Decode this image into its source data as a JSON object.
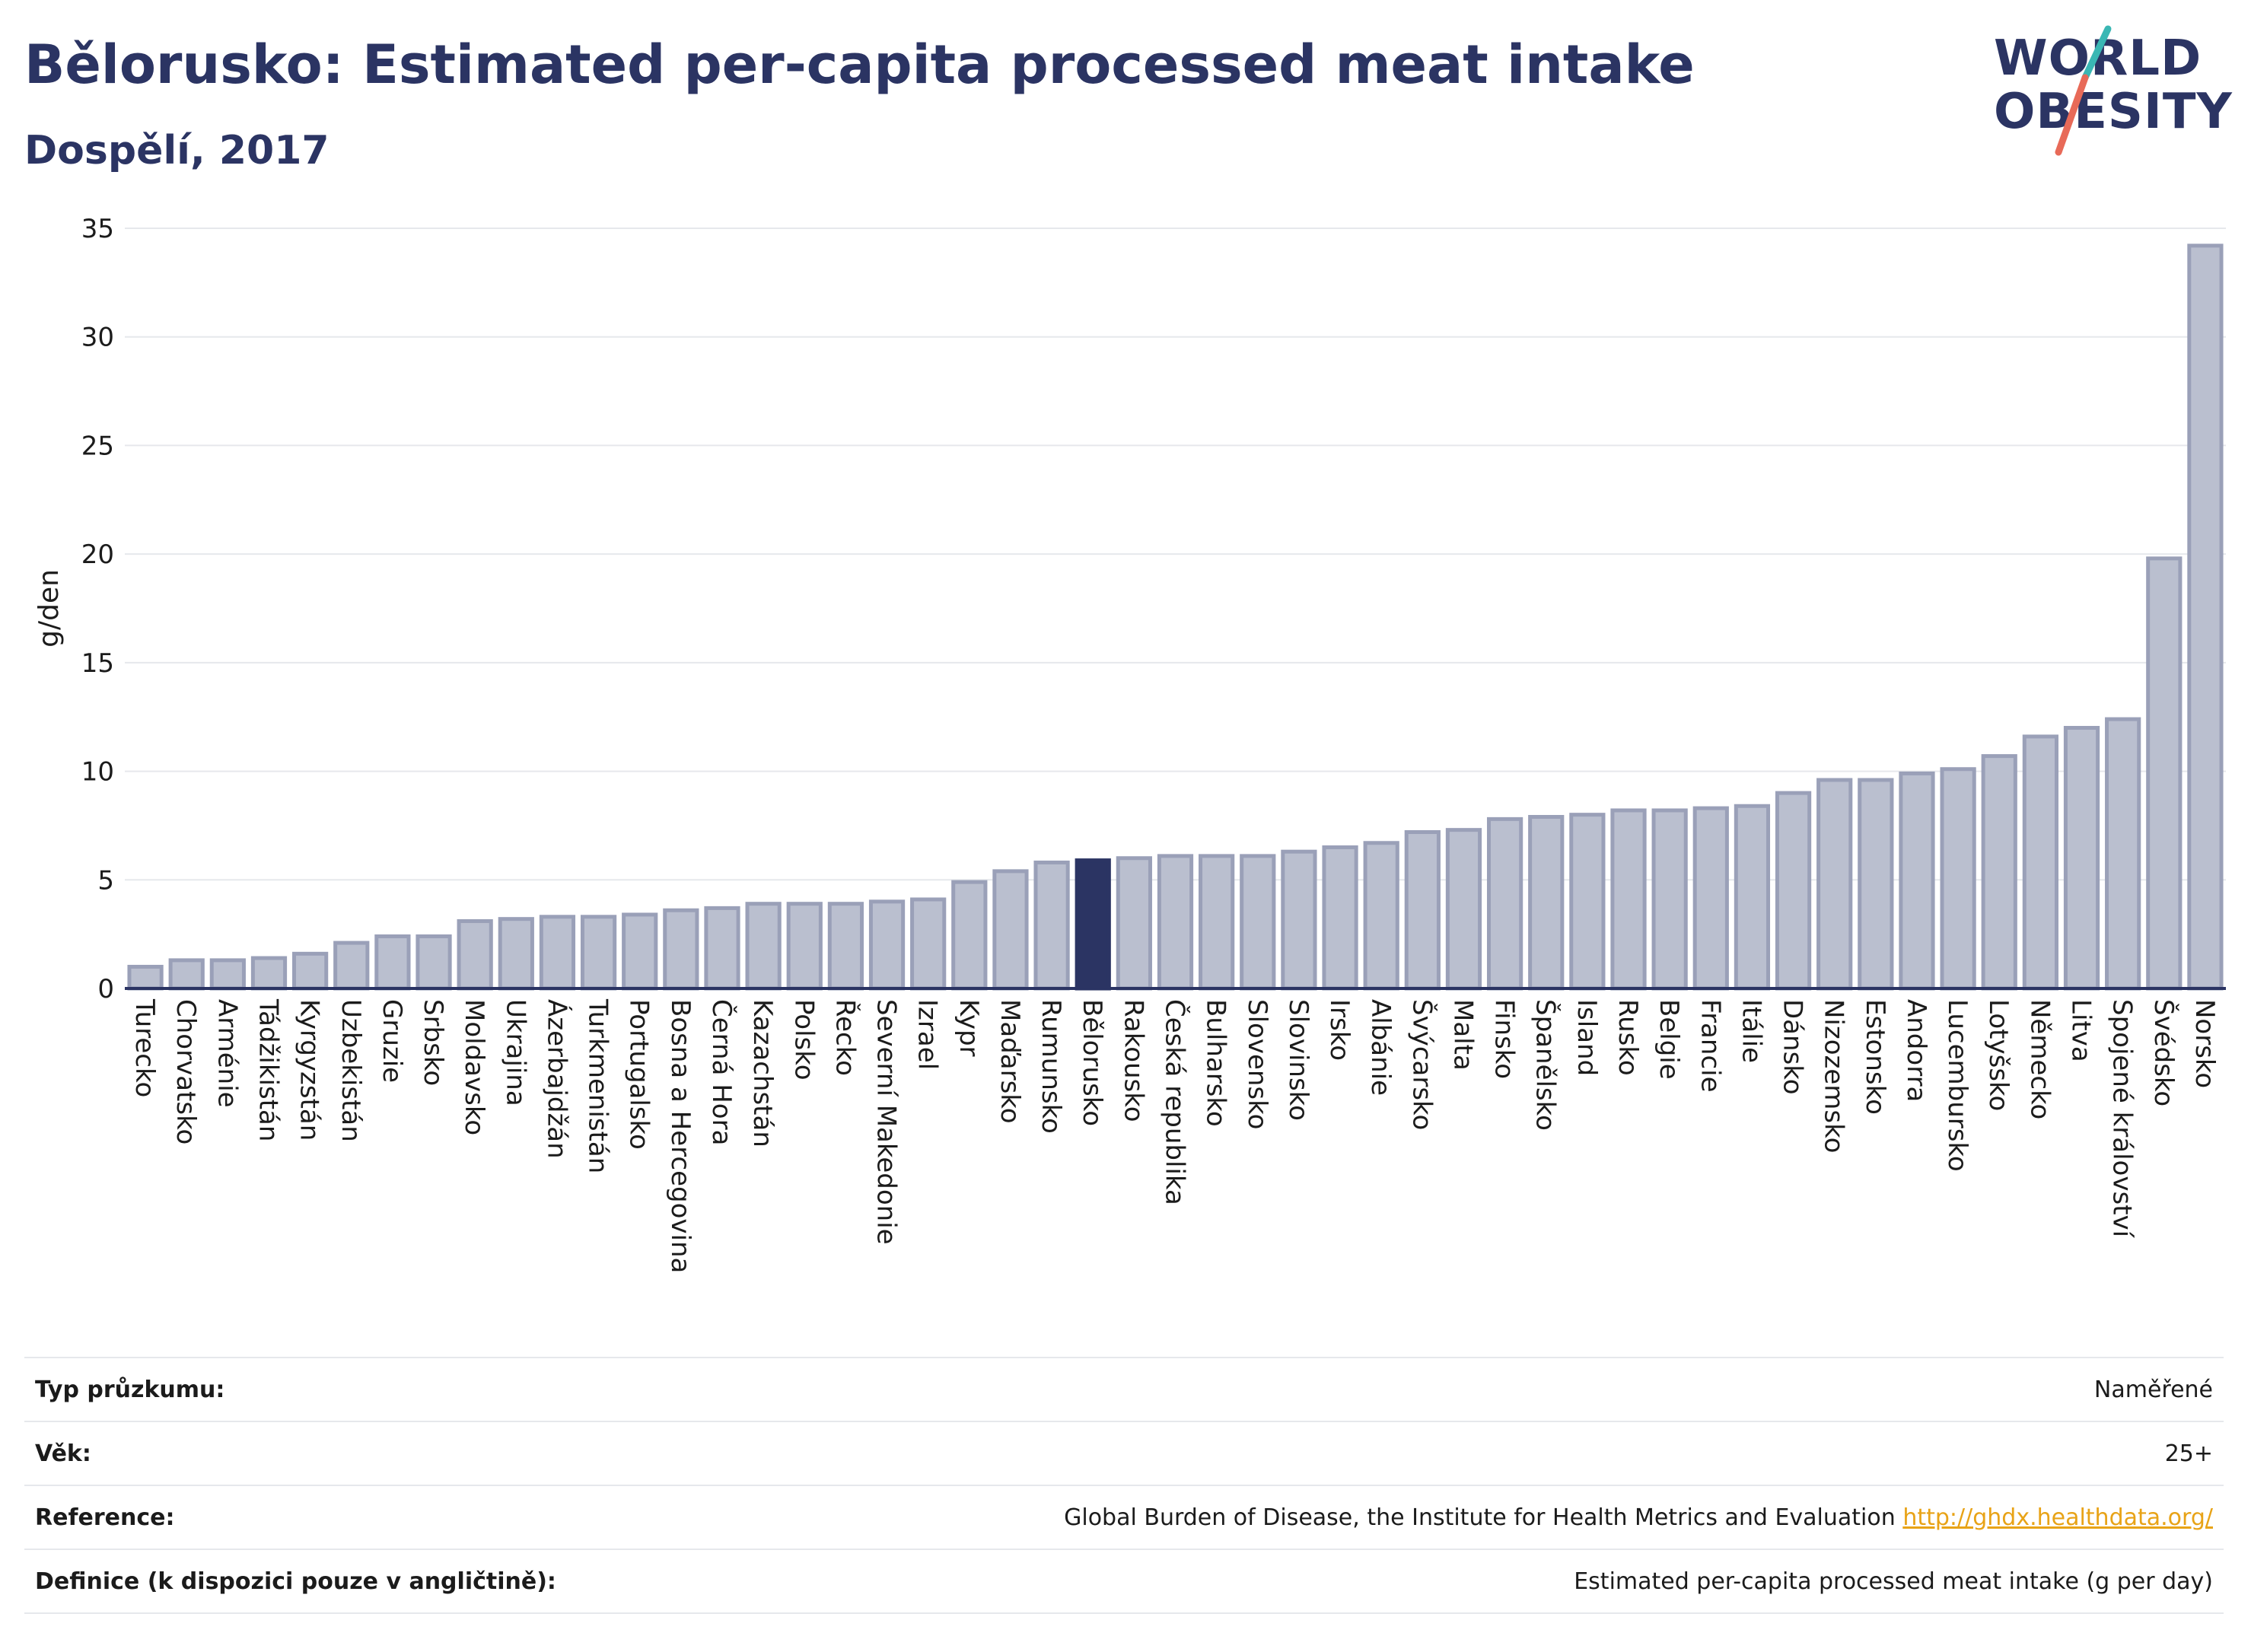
{
  "header": {
    "title": "Bělorusko: Estimated per-capita processed meat intake",
    "subtitle": "Dospělí, 2017"
  },
  "logo": {
    "line1": "WORLD",
    "line2": "OBESITY",
    "accent_teal": "#3ab7b4",
    "accent_coral": "#e86a58"
  },
  "colors": {
    "bar": "#babfcf",
    "bar_border": "#9aa0b8",
    "highlight": "#2b3463",
    "grid": "#e6e8ec"
  },
  "chart_data": {
    "type": "bar",
    "ylabel": "g/den",
    "ylim": [
      0,
      35
    ],
    "yticks": [
      0,
      5,
      10,
      15,
      20,
      25,
      30,
      35
    ],
    "highlight": "Bělorusko",
    "categories": [
      "Turecko",
      "Chorvatsko",
      "Arménie",
      "Tádžikistán",
      "Kyrgyzstán",
      "Uzbekistán",
      "Gruzie",
      "Srbsko",
      "Moldavsko",
      "Ukrajina",
      "Ázerbajdžán",
      "Turkmenistán",
      "Portugalsko",
      "Bosna a Hercegovina",
      "Černá Hora",
      "Kazachstán",
      "Polsko",
      "Řecko",
      "Severní Makedonie",
      "Izrael",
      "Kypr",
      "Maďarsko",
      "Rumunsko",
      "Bělorusko",
      "Rakousko",
      "Česká republika",
      "Bulharsko",
      "Slovensko",
      "Slovinsko",
      "Irsko",
      "Albánie",
      "Švýcarsko",
      "Malta",
      "Finsko",
      "Španělsko",
      "Island",
      "Rusko",
      "Belgie",
      "Francie",
      "Itálie",
      "Dánsko",
      "Nizozemsko",
      "Estonsko",
      "Andorra",
      "Lucembursko",
      "Lotyšsko",
      "Německo",
      "Litva",
      "Spojené království",
      "Švédsko",
      "Norsko"
    ],
    "values": [
      1.0,
      1.3,
      1.3,
      1.4,
      1.6,
      2.1,
      2.4,
      2.4,
      3.1,
      3.2,
      3.3,
      3.3,
      3.4,
      3.6,
      3.7,
      3.9,
      3.9,
      3.9,
      4.0,
      4.1,
      4.9,
      5.4,
      5.8,
      5.9,
      6.0,
      6.1,
      6.1,
      6.1,
      6.3,
      6.5,
      6.7,
      7.2,
      7.3,
      7.8,
      7.9,
      8.0,
      8.2,
      8.2,
      8.3,
      8.4,
      9.0,
      9.6,
      9.6,
      9.9,
      10.1,
      10.7,
      11.6,
      12.0,
      12.4,
      19.8,
      34.2
    ]
  },
  "info": {
    "survey_type_label": "Typ průzkumu:",
    "survey_type_value": "Naměřené",
    "age_label": "Věk:",
    "age_value": "25+",
    "reference_label": "Reference:",
    "reference_value": "Global Burden of Disease, the Institute for Health Metrics and Evaluation",
    "reference_link": "http://ghdx.healthdata.org/",
    "definition_label": "Definice (k dispozici pouze v angličtině):",
    "definition_value": "Estimated per-capita processed meat intake (g per day)"
  }
}
